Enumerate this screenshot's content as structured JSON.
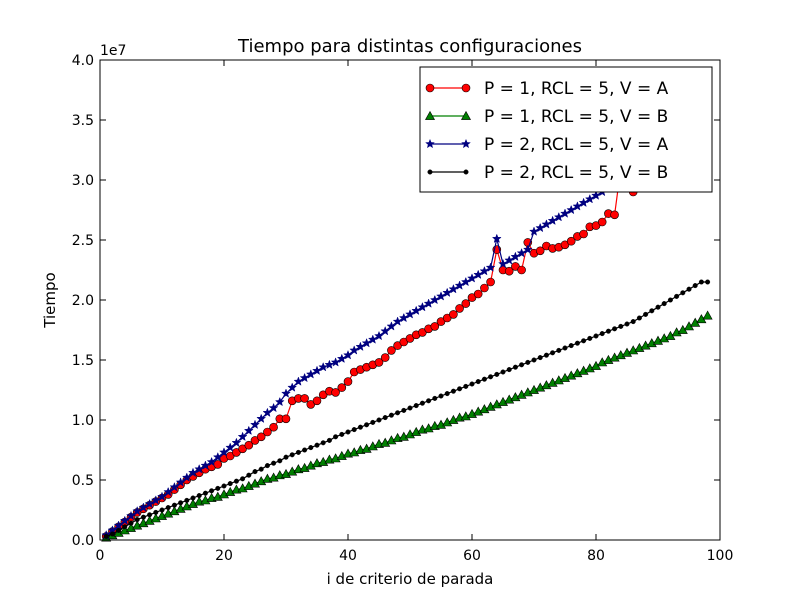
{
  "chart_data": {
    "type": "line",
    "title": "Tiempo para distintas configuraciones",
    "xlabel": "i de criterio de parada",
    "ylabel": "Tiempo",
    "y_offset_label": "1e7",
    "xlim": [
      0,
      100
    ],
    "ylim": [
      0,
      40000000
    ],
    "x_ticks": [
      0,
      20,
      40,
      60,
      80,
      100
    ],
    "x_tick_labels": [
      "0",
      "20",
      "40",
      "60",
      "80",
      "100"
    ],
    "y_ticks": [
      0,
      5000000,
      10000000,
      15000000,
      20000000,
      25000000,
      30000000,
      35000000,
      40000000
    ],
    "y_tick_labels": [
      "0.0",
      "0.5",
      "1.0",
      "1.5",
      "2.0",
      "2.5",
      "3.0",
      "3.5",
      "4.0"
    ],
    "grid": false,
    "legend_position": "top-right",
    "x": [
      1,
      2,
      3,
      4,
      5,
      6,
      7,
      8,
      9,
      10,
      11,
      12,
      13,
      14,
      15,
      16,
      17,
      18,
      19,
      20,
      21,
      22,
      23,
      24,
      25,
      26,
      27,
      28,
      29,
      30,
      31,
      32,
      33,
      34,
      35,
      36,
      37,
      38,
      39,
      40,
      41,
      42,
      43,
      44,
      45,
      46,
      47,
      48,
      49,
      50,
      51,
      52,
      53,
      54,
      55,
      56,
      57,
      58,
      59,
      60,
      61,
      62,
      63,
      64,
      65,
      66,
      67,
      68,
      69,
      70,
      71,
      72,
      73,
      74,
      75,
      76,
      77,
      78,
      79,
      80,
      81,
      82,
      83,
      84,
      85,
      86,
      87,
      88,
      89,
      90,
      91,
      92,
      93,
      94,
      95,
      96,
      97,
      98
    ],
    "series": [
      {
        "name": "P = 1, RCL = 5, V = A",
        "color": "#ff0000",
        "marker": "circle",
        "values": [
          300000,
          700000,
          1100000,
          1500000,
          1900000,
          2300000,
          2600000,
          2900000,
          3200000,
          3500000,
          3800000,
          4200000,
          4600000,
          5000000,
          5300000,
          5600000,
          5900000,
          6100000,
          6300000,
          6800000,
          7000000,
          7300000,
          7600000,
          7900000,
          8300000,
          8600000,
          9000000,
          9400000,
          10100000,
          10100000,
          11600000,
          11800000,
          11800000,
          11300000,
          11600000,
          12100000,
          12400000,
          12300000,
          12700000,
          13200000,
          14000000,
          14200000,
          14400000,
          14600000,
          14800000,
          15200000,
          15800000,
          16200000,
          16500000,
          16800000,
          17100000,
          17300000,
          17600000,
          17800000,
          18200000,
          18500000,
          18800000,
          19300000,
          19700000,
          20200000,
          20500000,
          21000000,
          21500000,
          24200000,
          22500000,
          22400000,
          22800000,
          22500000,
          24800000,
          23900000,
          24100000,
          24500000,
          24300000,
          24400000,
          24600000,
          24900000,
          25300000,
          25500000,
          26100000,
          26200000,
          26500000,
          27200000,
          27100000,
          31000000,
          31000000,
          29000000,
          31500000,
          31500000,
          32000000,
          32500000,
          32800000,
          33200000,
          33600000,
          34000000,
          34400000,
          34800000,
          35200000,
          35600000
        ]
      },
      {
        "name": "P = 1, RCL = 5, V = B",
        "color": "#008000",
        "marker": "triangle",
        "values": [
          200000,
          400000,
          600000,
          800000,
          1000000,
          1200000,
          1400000,
          1600000,
          1800000,
          2000000,
          2200000,
          2400000,
          2600000,
          2800000,
          3000000,
          3200000,
          3300000,
          3500000,
          3600000,
          3800000,
          4000000,
          4200000,
          4300000,
          4500000,
          4700000,
          4900000,
          5100000,
          5200000,
          5400000,
          5500000,
          5700000,
          5900000,
          6000000,
          6200000,
          6400000,
          6500000,
          6700000,
          6800000,
          7000000,
          7200000,
          7300000,
          7500000,
          7600000,
          7800000,
          8000000,
          8100000,
          8300000,
          8500000,
          8600000,
          8800000,
          9000000,
          9200000,
          9300000,
          9500000,
          9600000,
          9800000,
          10000000,
          10200000,
          10300000,
          10500000,
          10700000,
          10900000,
          11100000,
          11300000,
          11500000,
          11700000,
          11900000,
          12100000,
          12300000,
          12500000,
          12700000,
          12900000,
          13100000,
          13300000,
          13500000,
          13700000,
          13900000,
          14100000,
          14300000,
          14500000,
          14800000,
          15000000,
          15200000,
          15400000,
          15600000,
          15800000,
          16000000,
          16200000,
          16400000,
          16600000,
          16800000,
          17000000,
          17300000,
          17500000,
          17800000,
          18100000,
          18400000,
          18700000
        ]
      },
      {
        "name": "P = 2, RCL = 5, V = A",
        "color": "#000080",
        "marker": "star",
        "values": [
          400000,
          800000,
          1200000,
          1600000,
          2000000,
          2400000,
          2700000,
          3000000,
          3300000,
          3600000,
          4000000,
          4400000,
          4800000,
          5200000,
          5600000,
          5900000,
          6200000,
          6500000,
          6900000,
          7300000,
          7700000,
          8100000,
          8600000,
          9100000,
          9600000,
          10100000,
          10600000,
          11000000,
          11500000,
          12200000,
          12700000,
          13200000,
          13500000,
          13800000,
          14100000,
          14400000,
          14600000,
          14800000,
          15100000,
          15400000,
          15800000,
          16100000,
          16400000,
          16700000,
          17000000,
          17400000,
          17800000,
          18200000,
          18500000,
          18800000,
          19100000,
          19400000,
          19700000,
          20000000,
          20300000,
          20600000,
          20900000,
          21200000,
          21500000,
          21800000,
          22100000,
          22400000,
          22700000,
          25100000,
          23000000,
          23300000,
          23600000,
          23900000,
          24200000,
          25700000,
          26000000,
          26300000,
          26600000,
          26900000,
          27200000,
          27500000,
          27800000,
          28100000,
          28400000,
          28700000,
          29000000,
          29300000,
          29600000,
          30000000,
          30400000,
          30800000,
          31200000,
          31600000,
          32000000,
          32400000,
          32800000,
          33200000,
          33600000,
          34000000,
          34400000,
          34800000,
          35200000,
          35600000
        ]
      },
      {
        "name": "P = 2, RCL = 5, V = B",
        "color": "#000000",
        "marker": "point",
        "values": [
          300000,
          500000,
          800000,
          1100000,
          1400000,
          1700000,
          1900000,
          2100000,
          2300000,
          2500000,
          2700000,
          2900000,
          3100000,
          3300000,
          3500000,
          3700000,
          3900000,
          4100000,
          4300000,
          4500000,
          4700000,
          4900000,
          5100000,
          5400000,
          5700000,
          5900000,
          6200000,
          6400000,
          6600000,
          6900000,
          7100000,
          7300000,
          7500000,
          7700000,
          7900000,
          8100000,
          8300000,
          8600000,
          8800000,
          9000000,
          9200000,
          9400000,
          9600000,
          9800000,
          10000000,
          10200000,
          10400000,
          10600000,
          10800000,
          11000000,
          11200000,
          11400000,
          11600000,
          11800000,
          12000000,
          12200000,
          12400000,
          12600000,
          12800000,
          13000000,
          13200000,
          13400000,
          13600000,
          13800000,
          14000000,
          14200000,
          14400000,
          14600000,
          14800000,
          15000000,
          15200000,
          15400000,
          15600000,
          15800000,
          16000000,
          16200000,
          16400000,
          16600000,
          16800000,
          17000000,
          17200000,
          17400000,
          17600000,
          17800000,
          18000000,
          18200000,
          18500000,
          18800000,
          19100000,
          19400000,
          19700000,
          20000000,
          20300000,
          20600000,
          20900000,
          21200000,
          21500000,
          21500000
        ]
      }
    ]
  }
}
